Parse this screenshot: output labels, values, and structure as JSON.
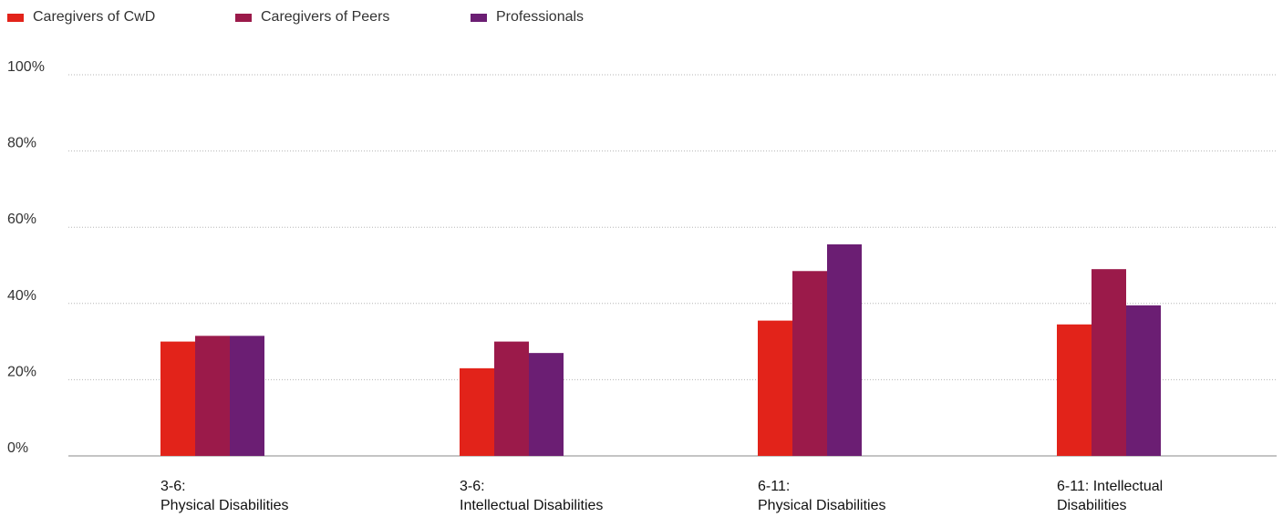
{
  "chart_data": {
    "type": "bar",
    "categories": [
      [
        "3-6:",
        "Physical Disabilities"
      ],
      [
        "3-6:",
        "Intellectual Disabilities"
      ],
      [
        "6-11:",
        "Physical Disabilities"
      ],
      [
        "6-11: Intellectual",
        "Disabilities"
      ]
    ],
    "series": [
      {
        "name": "Caregivers of CwD",
        "color": "#e2231a",
        "values": [
          30,
          23,
          35.5,
          34.5
        ]
      },
      {
        "name": "Caregivers of Peers",
        "color": "#9b1a4a",
        "values": [
          31.5,
          30,
          48.5,
          49
        ]
      },
      {
        "name": "Professionals",
        "color": "#6b1e73",
        "values": [
          31.5,
          27,
          55.5,
          39.5
        ]
      }
    ],
    "yticks": [
      "0%",
      "20%",
      "40%",
      "60%",
      "80%",
      "100%"
    ],
    "ylim": [
      0,
      100
    ],
    "grid": true,
    "legend": "top-left"
  }
}
